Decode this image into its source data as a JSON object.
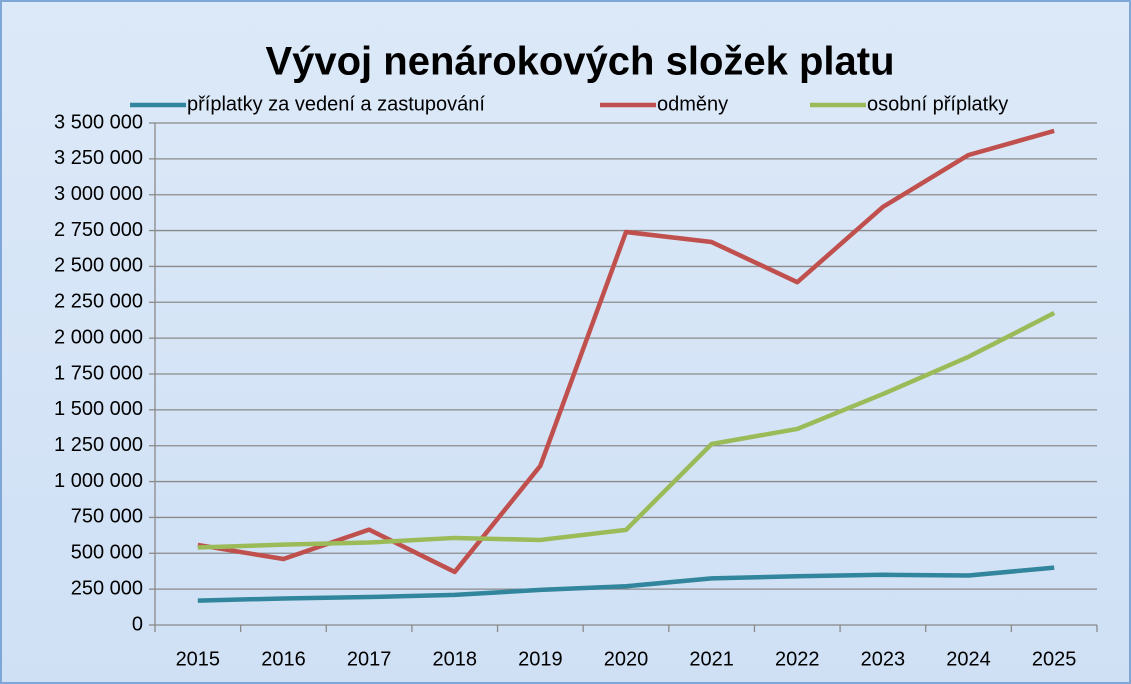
{
  "chart_data": {
    "type": "line",
    "title": "Vývoj nenárokových složek platu",
    "categories": [
      "2015",
      "2016",
      "2017",
      "2018",
      "2019",
      "2020",
      "2021",
      "2022",
      "2023",
      "2024",
      "2025"
    ],
    "series": [
      {
        "name": "příplatky za vedení a zastupování",
        "color": "#31859c",
        "values": [
          170000,
          185000,
          195000,
          210000,
          245000,
          270000,
          325000,
          340000,
          350000,
          345000,
          400000
        ]
      },
      {
        "name": "odměny",
        "color": "#c0504d",
        "values": [
          558000,
          460000,
          665000,
          370000,
          1110000,
          2740000,
          2670000,
          2390000,
          2915000,
          3277000,
          3445000
        ]
      },
      {
        "name": "osobní příplatky",
        "color": "#9bbb59",
        "values": [
          540000,
          560000,
          575000,
          607000,
          593000,
          663000,
          1262000,
          1367000,
          1610000,
          1870000,
          2175000
        ]
      }
    ],
    "ylim": [
      0,
      3500000
    ],
    "yticks": [
      0,
      {
        "value": 250000,
        "label": "250 000"
      },
      {
        "value": 500000,
        "label": "500 000"
      },
      {
        "value": 750000,
        "label": "750 000"
      },
      {
        "value": 1000000,
        "label": "1 000 000"
      },
      {
        "value": 1250000,
        "label": "1 250 000"
      },
      {
        "value": 1500000,
        "label": "1 500 000"
      },
      {
        "value": 1750000,
        "label": "1 750 000"
      },
      {
        "value": 2000000,
        "label": "2 000 000"
      },
      {
        "value": 2250000,
        "label": "2 250 000"
      },
      {
        "value": 2500000,
        "label": "2 500 000"
      },
      {
        "value": 2750000,
        "label": "2 750 000"
      },
      {
        "value": 3000000,
        "label": "3 000 000"
      },
      {
        "value": 3250000,
        "label": "3 250 000"
      },
      {
        "value": 3500000,
        "label": "3 500 000"
      }
    ],
    "grid": true,
    "legend": "top"
  }
}
